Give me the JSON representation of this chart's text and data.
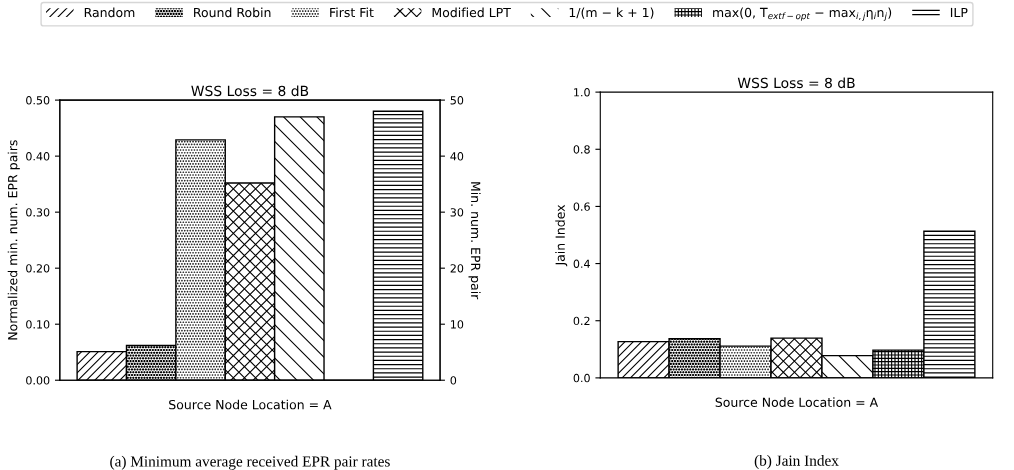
{
  "chart_data": [
    {
      "type": "bar",
      "title": "WSS Loss = 8 dB",
      "xlabel": "Source Node Location = A",
      "ylabel": "Normalized min. num. EPR pairs",
      "y2label": "Min. num. EPR pair",
      "categories": [
        null
      ],
      "series": [
        {
          "color": "#000000",
          "values": [
            0.051
          ]
        },
        {
          "color": "#000000",
          "values": [
            0.062
          ]
        },
        {
          "color": "#000000",
          "values": [
            0.429
          ]
        },
        {
          "color": "#000000",
          "values": [
            0.352
          ]
        },
        {
          "color": "#000000",
          "values": [
            0.47
          ]
        },
        {
          "color": "#000000",
          "values": [
            0
          ]
        },
        {
          "color": "#000000",
          "values": [
            0.48
          ]
        }
      ],
      "ylim": [
        0,
        0.5
      ],
      "yticks": [
        {
          "value": 0,
          "label": "0.00"
        },
        {
          "value": 0.1,
          "label": "0.10"
        },
        {
          "value": 0.2,
          "label": "0.20"
        },
        {
          "value": 0.3,
          "label": "0.30"
        },
        {
          "value": 0.4,
          "label": "0.40"
        },
        {
          "value": 0.5,
          "label": "0.50"
        }
      ],
      "y2lim": [
        0,
        50
      ],
      "y2ticks": [
        0,
        10,
        20,
        30,
        40,
        50
      ],
      "tick_labels": "y",
      "grid": false,
      "annotations": [
        "(a) Minimum average received EPR pair rates"
      ]
    },
    {
      "type": "bar",
      "title": "WSS Loss = 8 dB",
      "xlabel": "Source Node Location = A",
      "ylabel": "Jain Index",
      "categories": [
        null
      ],
      "series": [
        {
          "name": "Random",
          "color": "#000000",
          "values": [
            0.127
          ]
        },
        {
          "name": "Round Robin",
          "color": "#000000",
          "values": [
            0.137
          ]
        },
        {
          "name": "First Fit",
          "color": "#000000",
          "values": [
            0.111
          ]
        },
        {
          "name": "Modified LPT",
          "color": "#000000",
          "values": [
            0.139
          ]
        },
        {
          "name": "1/(m − k + 1)",
          "color": "#000000",
          "values": [
            0.078
          ]
        },
        {
          "name": "max(0, T$_{extf−opt}$ − max$_{i,j}$η$_{i}$n$_{j}$)",
          "color": "#000000",
          "values": [
            0.097
          ]
        },
        {
          "name": "ILP",
          "color": "#000000",
          "values": [
            0.513
          ]
        }
      ],
      "ylim": [
        0,
        1
      ],
      "yticks": [
        {
          "value": 0,
          "label": "0.0"
        },
        {
          "value": 0.2,
          "label": "0.2"
        },
        {
          "value": 0.4,
          "label": "0.4"
        },
        {
          "value": 0.6,
          "label": "0.6"
        },
        {
          "value": 0.8,
          "label": "0.8"
        },
        {
          "value": 1,
          "label": "1.0"
        }
      ],
      "tick_labels": "y",
      "grid": false,
      "legend": "top",
      "annotations": [
        "(b) Jain Index"
      ]
    }
  ]
}
